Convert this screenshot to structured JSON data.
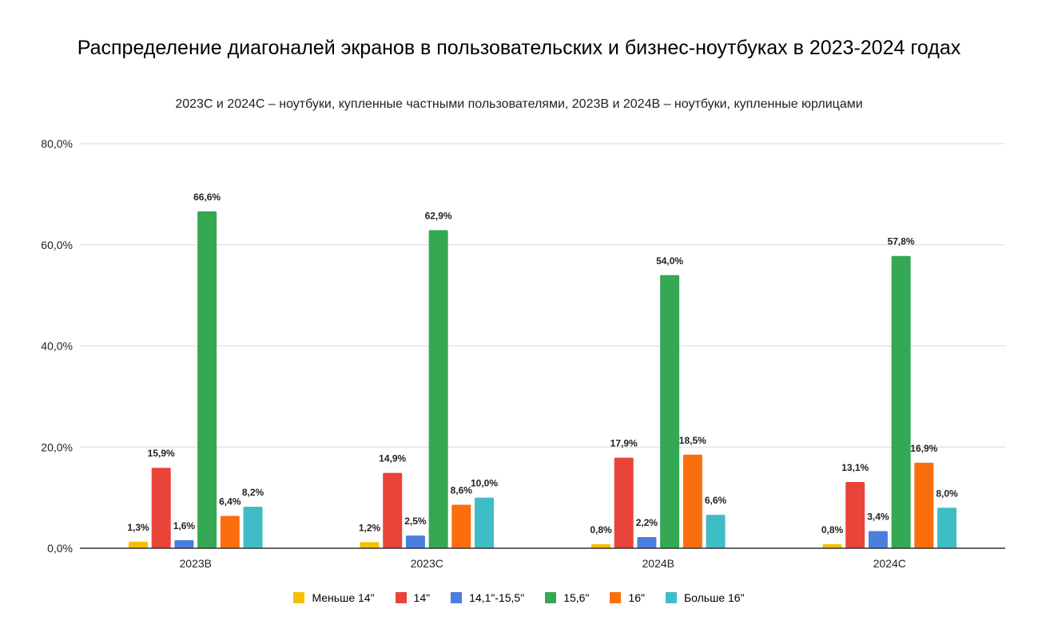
{
  "chart_data": {
    "type": "bar",
    "title": "Распределение диагоналей экранов в пользовательских и бизнес-ноутбуках в 2023-2024 годах",
    "subtitle": "2023C и 2024C – ноутбуки, купленные частными пользователями, 2023B и 2024B – ноутбуки, купленные юрлицами",
    "categories": [
      "2023B",
      "2023C",
      "2024B",
      "2024C"
    ],
    "ylim": [
      0,
      80
    ],
    "yticks": [
      "0,0%",
      "20,0%",
      "40,0%",
      "60,0%",
      "80,0%"
    ],
    "ytick_values": [
      0,
      20,
      40,
      60,
      80
    ],
    "grid": true,
    "legend_position": "bottom",
    "series": [
      {
        "name": "Меньше 14\"",
        "color": "#f4c000",
        "values": [
          1.3,
          1.2,
          0.8,
          0.8
        ],
        "labels": [
          "1,3%",
          "1,2%",
          "0,8%",
          "0,8%"
        ]
      },
      {
        "name": "14\"",
        "color": "#e8443a",
        "values": [
          15.9,
          14.9,
          17.9,
          13.1
        ],
        "labels": [
          "15,9%",
          "14,9%",
          "17,9%",
          "13,1%"
        ]
      },
      {
        "name": "14,1\"-15,5\"",
        "color": "#4a7fe0",
        "values": [
          1.6,
          2.5,
          2.2,
          3.4
        ],
        "labels": [
          "1,6%",
          "2,5%",
          "2,2%",
          "3,4%"
        ]
      },
      {
        "name": "15,6\"",
        "color": "#34a853",
        "values": [
          66.6,
          62.9,
          54.0,
          57.8
        ],
        "labels": [
          "66,6%",
          "62,9%",
          "54,0%",
          "57,8%"
        ]
      },
      {
        "name": "16\"",
        "color": "#fb6e0e",
        "values": [
          6.4,
          8.6,
          18.5,
          16.9
        ],
        "labels": [
          "6,4%",
          "8,6%",
          "18,5%",
          "16,9%"
        ]
      },
      {
        "name": "Больше 16\"",
        "color": "#3fbdc6",
        "values": [
          8.2,
          10.0,
          6.6,
          8.0
        ],
        "labels": [
          "8,2%",
          "10,0%",
          "6,6%",
          "8,0%"
        ]
      }
    ]
  }
}
